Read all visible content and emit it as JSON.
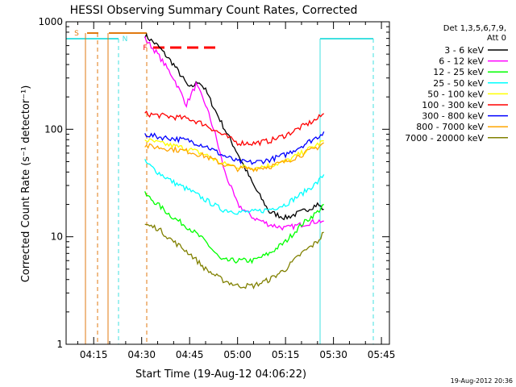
{
  "chart_data": {
    "type": "line",
    "title": "HESSI Observing Summary Count Rates, Corrected",
    "xlabel": "Start Time (19-Aug-12 04:06:22)",
    "ylabel": "Corrected Count Rate (s⁻¹ detector⁻¹)",
    "yscale": "log",
    "ylim": [
      1,
      1000
    ],
    "xlim": [
      "04:06:22",
      "05:47:30"
    ],
    "y_ticks": [
      "1",
      "10",
      "100",
      "1000"
    ],
    "x_ticks": [
      "04:15",
      "04:30",
      "04:45",
      "05:00",
      "05:15",
      "05:30",
      "05:45"
    ],
    "legend_header": [
      "Det 1,3,5,6,7,9,",
      "Att 0"
    ],
    "legend_position": "right",
    "footer": "19-Aug-2012 20:36",
    "annotations": {
      "saa": "S",
      "night": "N",
      "flare": "F"
    },
    "series": [
      {
        "name": "3 - 6 keV",
        "color": "#000000",
        "x": [
          "04:31",
          "04:35",
          "04:40",
          "04:45",
          "04:48",
          "04:50",
          "04:53",
          "04:56",
          "05:00",
          "05:05",
          "05:10",
          "05:15",
          "05:20",
          "05:25",
          "05:27"
        ],
        "y": [
          750,
          600,
          400,
          240,
          280,
          230,
          150,
          100,
          60,
          30,
          17,
          15,
          17,
          20,
          18
        ]
      },
      {
        "name": "6 - 12 keV",
        "color": "#ff00ff",
        "x": [
          "04:31",
          "04:35",
          "04:40",
          "04:44",
          "04:47",
          "04:50",
          "04:53",
          "04:56",
          "05:00",
          "05:05",
          "05:10",
          "05:15",
          "05:20",
          "05:25",
          "05:27"
        ],
        "y": [
          700,
          500,
          300,
          170,
          260,
          170,
          90,
          40,
          20,
          15,
          13,
          12,
          13,
          14,
          14
        ]
      },
      {
        "name": "12 - 25 keV",
        "color": "#00ff00",
        "x": [
          "04:31",
          "04:35",
          "04:40",
          "04:45",
          "04:50",
          "04:55",
          "05:00",
          "05:05",
          "05:10",
          "05:15",
          "05:20",
          "05:25",
          "05:27"
        ],
        "y": [
          25,
          20,
          15,
          12,
          9,
          6,
          6,
          6,
          7,
          9,
          13,
          17,
          20
        ]
      },
      {
        "name": "25 - 50 keV",
        "color": "#00ffff",
        "x": [
          "04:31",
          "04:35",
          "04:40",
          "04:45",
          "04:50",
          "04:55",
          "05:00",
          "05:05",
          "05:10",
          "05:15",
          "05:20",
          "05:25",
          "05:27"
        ],
        "y": [
          50,
          40,
          32,
          27,
          22,
          18,
          17,
          17,
          18,
          20,
          25,
          32,
          38
        ]
      },
      {
        "name": "50 - 100 keV",
        "color": "#ffff00",
        "x": [
          "04:31",
          "04:35",
          "04:40",
          "04:45",
          "04:50",
          "04:55",
          "05:00",
          "05:05",
          "05:10",
          "05:15",
          "05:20",
          "05:25",
          "05:27"
        ],
        "y": [
          80,
          75,
          70,
          65,
          58,
          48,
          45,
          44,
          46,
          50,
          60,
          72,
          78
        ]
      },
      {
        "name": "100 - 300 keV",
        "color": "#ff0000",
        "x": [
          "04:31",
          "04:35",
          "04:40",
          "04:45",
          "04:50",
          "04:55",
          "05:00",
          "05:05",
          "05:10",
          "05:15",
          "05:20",
          "05:25",
          "05:27"
        ],
        "y": [
          140,
          135,
          130,
          125,
          110,
          90,
          75,
          74,
          78,
          88,
          105,
          125,
          140
        ]
      },
      {
        "name": "300 - 800 keV",
        "color": "#0000ff",
        "x": [
          "04:31",
          "04:35",
          "04:40",
          "04:45",
          "04:50",
          "04:55",
          "05:00",
          "05:05",
          "05:10",
          "05:15",
          "05:20",
          "05:25",
          "05:27"
        ],
        "y": [
          90,
          85,
          82,
          78,
          70,
          58,
          50,
          49,
          52,
          58,
          70,
          85,
          95
        ]
      },
      {
        "name": "800 - 7000 keV",
        "color": "#ffa500",
        "x": [
          "04:31",
          "04:35",
          "04:40",
          "04:45",
          "04:50",
          "04:55",
          "05:00",
          "05:05",
          "05:10",
          "05:15",
          "05:20",
          "05:25",
          "05:27"
        ],
        "y": [
          70,
          68,
          65,
          62,
          56,
          48,
          43,
          43,
          45,
          50,
          58,
          68,
          75
        ]
      },
      {
        "name": "7000 - 20000 keV",
        "color": "#808000",
        "x": [
          "04:31",
          "04:35",
          "04:40",
          "04:45",
          "04:50",
          "04:55",
          "05:00",
          "05:05",
          "05:10",
          "05:15",
          "05:20",
          "05:25",
          "05:27"
        ],
        "y": [
          13,
          12,
          9,
          7,
          5,
          4,
          3.5,
          3.5,
          4,
          5,
          7,
          9,
          11
        ]
      }
    ]
  }
}
